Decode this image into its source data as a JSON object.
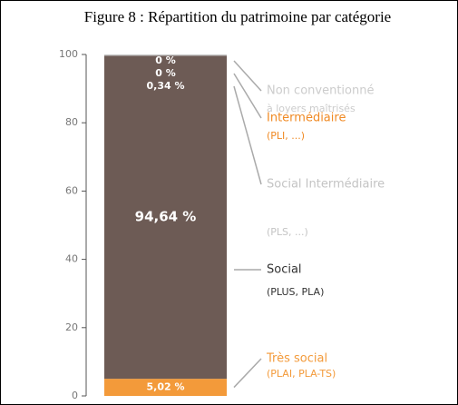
{
  "chart_data": {
    "type": "stacked-bar",
    "title": "Figure 8 : Répartition du patrimoine par catégorie",
    "ylim": [
      0,
      100
    ],
    "yticks": [
      0,
      20,
      40,
      60,
      80,
      100
    ],
    "series": [
      {
        "name": "Très social",
        "detail": "(PLAI, PLA-TS)",
        "color": "#f39a3a",
        "values": [
          5.02
        ],
        "value_labels": [
          "5,02 %"
        ]
      },
      {
        "name": "Social",
        "detail": "(PLUS, PLA)",
        "color": "#6d5b55",
        "values": [
          94.64
        ],
        "value_labels": [
          "94,64 %"
        ]
      },
      {
        "name": "Social Intermédiaire",
        "detail": "(PLS, ...)",
        "color": "#c4c4c4",
        "values": [
          0.34
        ],
        "value_labels": [
          "0,34 %"
        ]
      },
      {
        "name": "Intermédiaire",
        "detail": "(PLI, ...)",
        "color": "#f08a24",
        "values": [
          0
        ],
        "value_labels": [
          "0 %"
        ]
      },
      {
        "name": "Non conventionné",
        "detail": "à loyers maîtrisés",
        "color": "#cccccc",
        "values": [
          0
        ],
        "value_labels": [
          "0 %"
        ]
      }
    ]
  }
}
